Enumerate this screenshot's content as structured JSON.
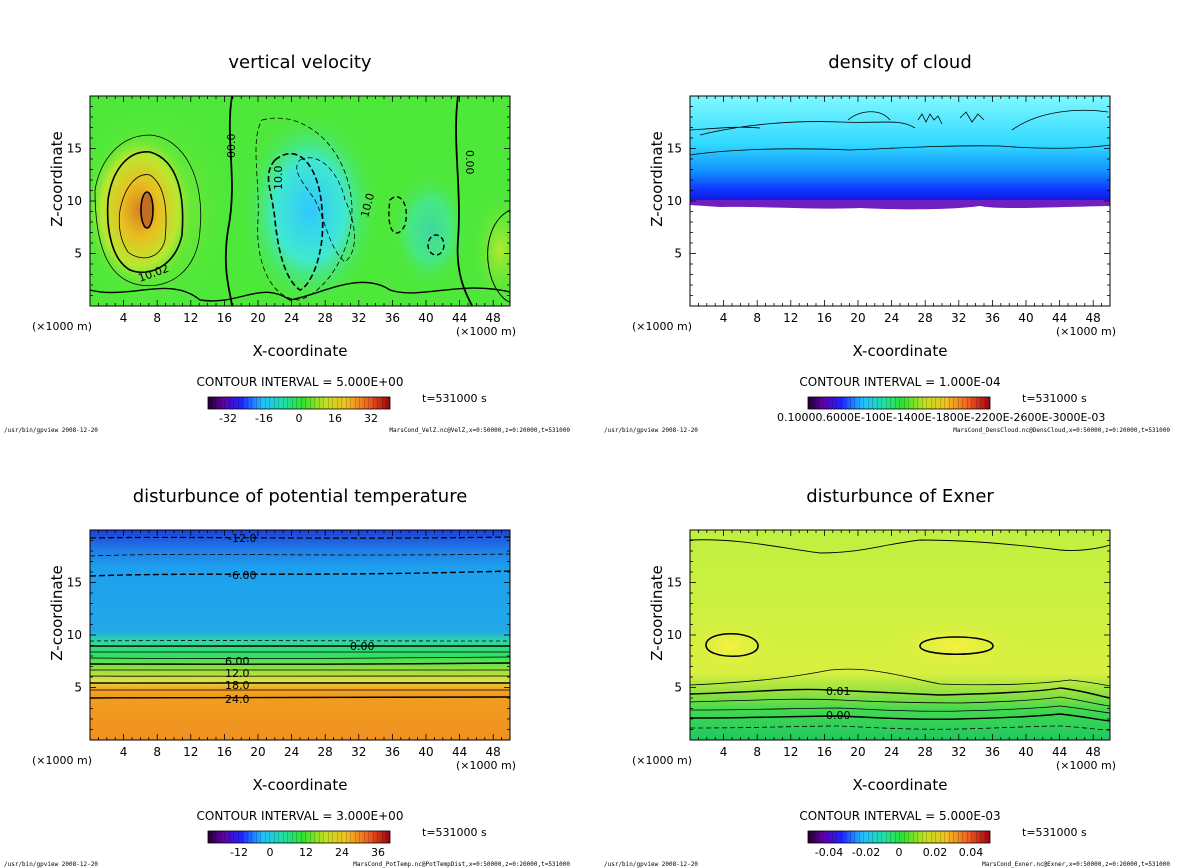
{
  "panels": [
    {
      "title": "vertical velocity",
      "ylabel": "Z-coordinate",
      "xlabel": "X-coordinate",
      "x_unit": "(×1000 m)",
      "x_ticks": [
        "4",
        "8",
        "12",
        "16",
        "20",
        "24",
        "28",
        "32",
        "36",
        "40",
        "44",
        "48"
      ],
      "y_ticks": [
        "5",
        "10",
        "15"
      ],
      "contour_interval": "CONTOUR INTERVAL = 5.000E+00",
      "time": "t=531000 s",
      "colorbar_labels": [
        "-32",
        "-16",
        "0",
        "16",
        "32"
      ],
      "contour_labels": [
        "00.0",
        "10.0",
        "10.0",
        "10.02",
        "0.00"
      ],
      "footer_left": "/usr/bin/gpview  2008-12-20",
      "footer_right": "MarsCond_VelZ.nc@VelZ,x=0:50000,z=0:20000,t=531000",
      "colors": {
        "background": "#4ee83a",
        "warm": "#e0c020",
        "core": "#d98020",
        "cool": "#3ad8ff"
      }
    },
    {
      "title": "density of cloud",
      "ylabel": "Z-coordinate",
      "xlabel": "X-coordinate",
      "x_unit": "(×1000 m)",
      "x_ticks": [
        "4",
        "8",
        "12",
        "16",
        "20",
        "24",
        "28",
        "32",
        "36",
        "40",
        "44",
        "48"
      ],
      "y_ticks": [
        "5",
        "10",
        "15"
      ],
      "contour_interval": "CONTOUR INTERVAL = 1.000E-04",
      "time": "t=531000 s",
      "colorbar_labels": [
        "0.1000E-03",
        "0.6000E-03",
        "0.1000E-02",
        "0.1400E-02",
        "0.1800E-02",
        "0.2200E-02",
        "0.2600E-02",
        "0.3000E-03"
      ],
      "colorbar_text": "0.10000.6000E-100E-1400E-1800E-2200E-2600E-3000E-03",
      "footer_left": "/usr/bin/gpview  2008-12-20",
      "footer_right": "MarsCond_DensCloud.nc@DensCloud,x=0:50000,z=0:20000,t=531000",
      "colors": {
        "top": "#7ff0ff",
        "mid": "#20a0ff",
        "base": "#1020ff",
        "edge": "#7020c0"
      }
    },
    {
      "title": "disturbunce of potential temperature",
      "ylabel": "Z-coordinate",
      "xlabel": "X-coordinate",
      "x_unit": "(×1000 m)",
      "x_ticks": [
        "4",
        "8",
        "12",
        "16",
        "20",
        "24",
        "28",
        "32",
        "36",
        "40",
        "44",
        "48"
      ],
      "y_ticks": [
        "5",
        "10",
        "15"
      ],
      "contour_interval": "CONTOUR INTERVAL = 3.000E+00",
      "time": "t=531000 s",
      "colorbar_labels": [
        "-12",
        "0",
        "12",
        "24",
        "36"
      ],
      "contour_labels": [
        "-12.0",
        "-6.00",
        "0.00",
        "6.00",
        "12.0",
        "18.0",
        "24.0"
      ],
      "footer_left": "/usr/bin/gpview  2008-12-20",
      "footer_right": "MarsCond_PotTemp.nc@PotTempDist,x=0:50000,z=0:20000,t=531000",
      "colors": {
        "top": "#2050e0",
        "upper": "#1e90e8",
        "mid": "#20c0a0",
        "low": "#f09020"
      }
    },
    {
      "title": "disturbunce of Exner",
      "ylabel": "Z-coordinate",
      "xlabel": "X-coordinate",
      "x_unit": "(×1000 m)",
      "x_ticks": [
        "4",
        "8",
        "12",
        "16",
        "20",
        "24",
        "28",
        "32",
        "36",
        "40",
        "44",
        "48"
      ],
      "y_ticks": [
        "5",
        "10",
        "15"
      ],
      "contour_interval": "CONTOUR INTERVAL = 5.000E-03",
      "time": "t=531000 s",
      "colorbar_labels": [
        "-0.04",
        "-0.02",
        "0",
        "0.02",
        "0.04"
      ],
      "contour_labels": [
        "0.01",
        "0.00"
      ],
      "footer_left": "/usr/bin/gpview  2008-12-20",
      "footer_right": "MarsCond_Exner.nc@Exner,x=0:50000,z=0:20000,t=531000",
      "colors": {
        "main": "#c8f040",
        "band": "#a0e840",
        "low": "#30d860",
        "core": "#f0f040"
      }
    }
  ],
  "chart_data": [
    {
      "type": "heatmap",
      "title": "vertical velocity",
      "xlabel": "X-coordinate",
      "ylabel": "Z-coordinate",
      "x_unit": "(×1000 m)",
      "xlim": [
        0,
        50
      ],
      "ylim": [
        0,
        20
      ],
      "x_ticks": [
        4,
        8,
        12,
        16,
        20,
        24,
        28,
        32,
        36,
        40,
        44,
        48
      ],
      "y_ticks": [
        5,
        10,
        15
      ],
      "contour_interval": 5.0,
      "colorbar_range": [
        -40,
        40
      ],
      "colorbar_ticks": [
        -32,
        -16,
        0,
        16,
        32
      ]
    },
    {
      "type": "heatmap",
      "title": "density of cloud",
      "xlabel": "X-coordinate",
      "ylabel": "Z-coordinate",
      "x_unit": "(×1000 m)",
      "xlim": [
        0,
        50
      ],
      "ylim": [
        0,
        20
      ],
      "x_ticks": [
        4,
        8,
        12,
        16,
        20,
        24,
        28,
        32,
        36,
        40,
        44,
        48
      ],
      "y_ticks": [
        5,
        10,
        15
      ],
      "contour_interval": 0.0001,
      "cloud_base_z": 10
    },
    {
      "type": "heatmap",
      "title": "disturbunce of potential temperature",
      "xlabel": "X-coordinate",
      "ylabel": "Z-coordinate",
      "x_unit": "(×1000 m)",
      "xlim": [
        0,
        50
      ],
      "ylim": [
        0,
        20
      ],
      "x_ticks": [
        4,
        8,
        12,
        16,
        20,
        24,
        28,
        32,
        36,
        40,
        44,
        48
      ],
      "y_ticks": [
        5,
        10,
        15
      ],
      "contour_interval": 3.0,
      "colorbar_ticks": [
        -12,
        0,
        12,
        24,
        36
      ],
      "contours": [
        {
          "label": "-12.0",
          "z": 19.2
        },
        {
          "label": "-6.00",
          "z": 15.9
        },
        {
          "label": "0.00",
          "z": 9.3
        },
        {
          "label": "6.00",
          "z": 7.6
        },
        {
          "label": "12.0",
          "z": 6.4
        },
        {
          "label": "18.0",
          "z": 5.2
        },
        {
          "label": "24.0",
          "z": 4.0
        }
      ]
    },
    {
      "type": "heatmap",
      "title": "disturbunce of Exner",
      "xlabel": "X-coordinate",
      "ylabel": "Z-coordinate",
      "x_unit": "(×1000 m)",
      "xlim": [
        0,
        50
      ],
      "ylim": [
        0,
        20
      ],
      "x_ticks": [
        4,
        8,
        12,
        16,
        20,
        24,
        28,
        32,
        36,
        40,
        44,
        48
      ],
      "y_ticks": [
        5,
        10,
        15
      ],
      "contour_interval": 0.005,
      "colorbar_ticks": [
        -0.04,
        -0.02,
        0,
        0.02,
        0.04
      ],
      "contours": [
        {
          "label": "0.01",
          "z": 4.5
        },
        {
          "label": "0.00",
          "z": 2.5
        }
      ]
    }
  ]
}
